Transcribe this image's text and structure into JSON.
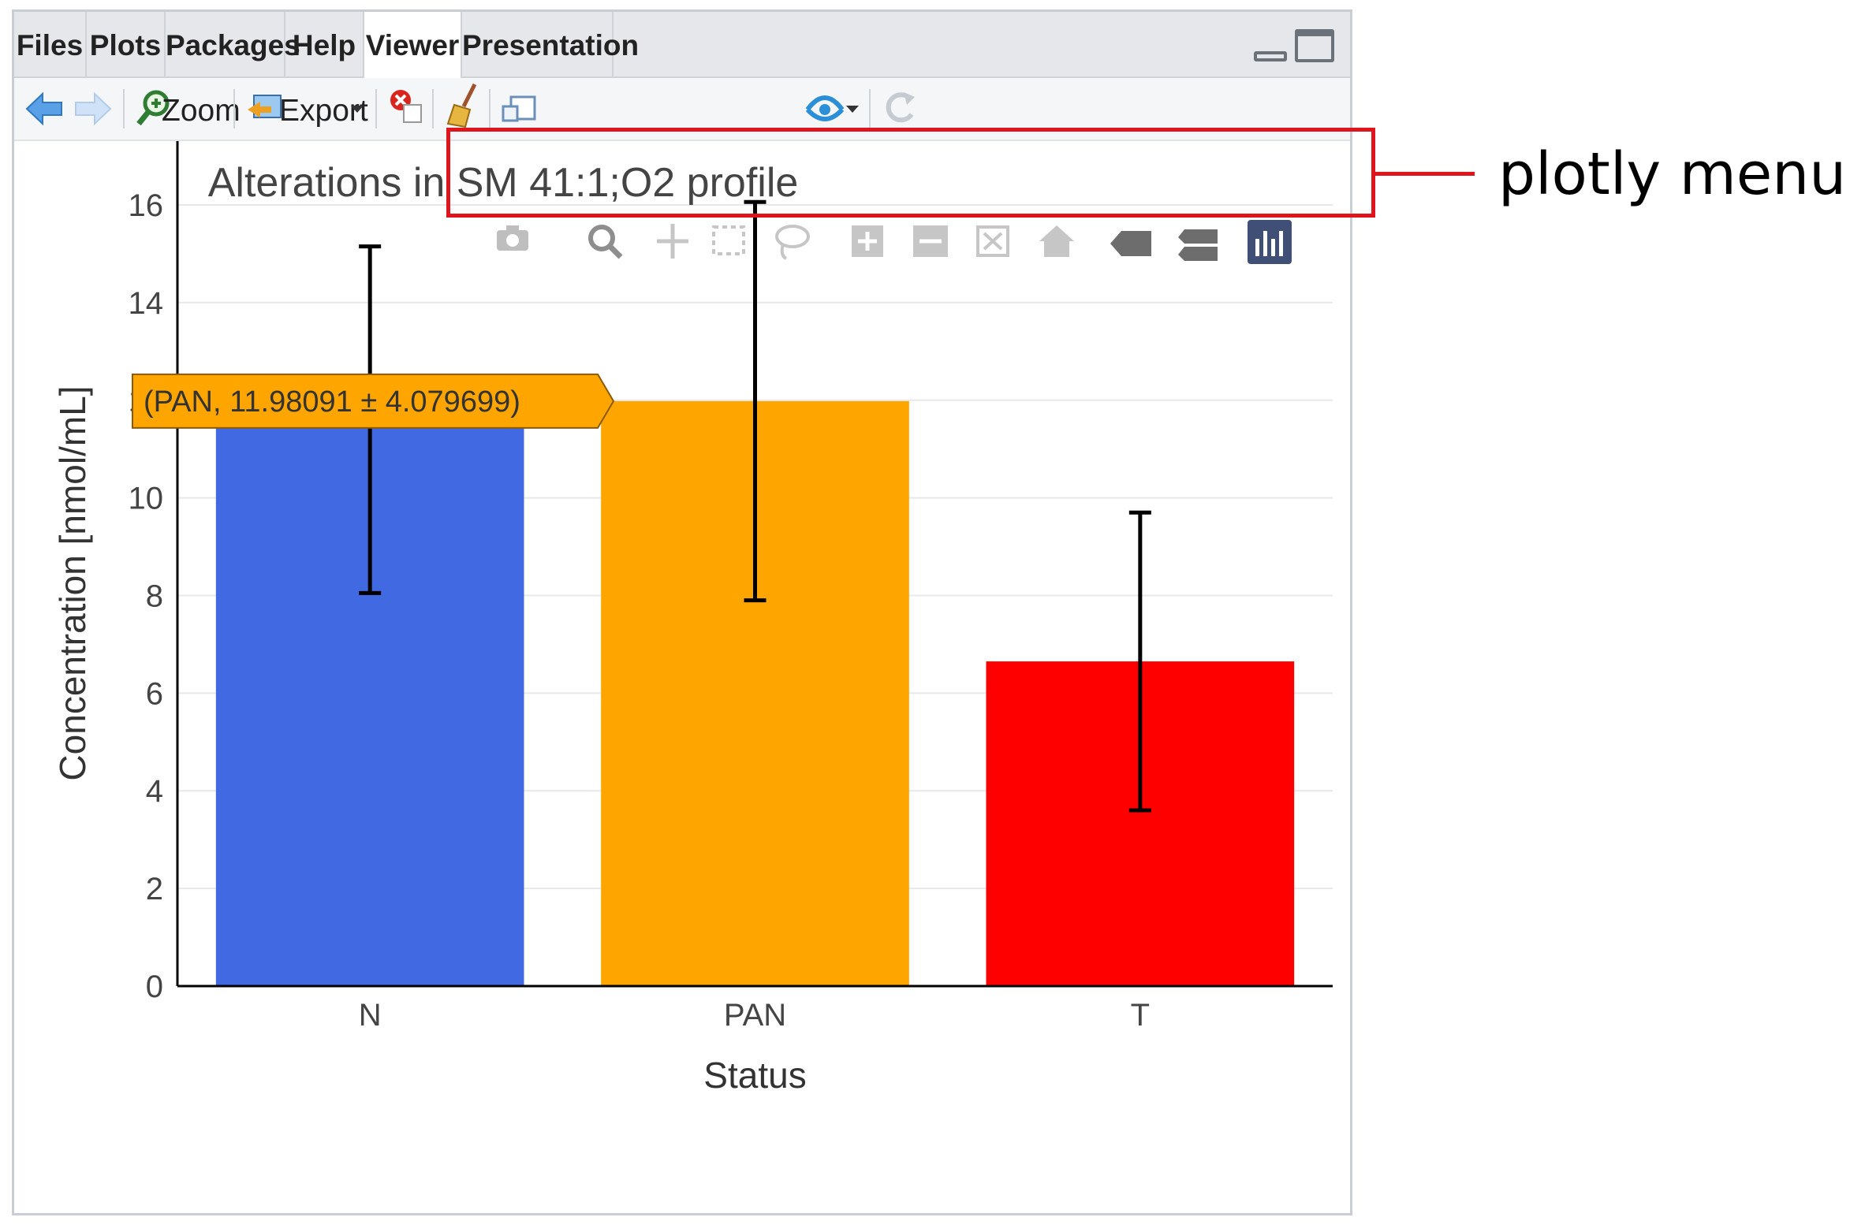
{
  "tabs": [
    {
      "label": "Files"
    },
    {
      "label": "Plots"
    },
    {
      "label": "Packages"
    },
    {
      "label": "Help"
    },
    {
      "label": "Viewer",
      "active": true
    },
    {
      "label": "Presentation"
    }
  ],
  "toolbar": {
    "zoom_label": "Zoom",
    "export_label": "Export",
    "icons": [
      "back-arrow-icon",
      "forward-arrow-icon",
      "zoom-icon",
      "export-icon",
      "clear-icon",
      "broom-icon",
      "popout-icon",
      "publish-icon",
      "refresh-icon"
    ]
  },
  "plotly_modebar": {
    "icons": [
      "camera-icon",
      "zoom-icon",
      "pan-icon",
      "box-select-icon",
      "lasso-icon",
      "zoom-in-icon",
      "zoom-out-icon",
      "autoscale-icon",
      "home-icon",
      "hover-closest-icon",
      "hover-compare-icon",
      "plotly-logo-icon"
    ]
  },
  "colors": {
    "N": "#4169e1",
    "PAN": "#ffa500",
    "T": "#ff0000",
    "annotation": "#e0141c",
    "tooltip_bg": "#ffa500"
  },
  "chart_data": {
    "type": "bar",
    "title": "Alterations in SM 41:1;O2 profile",
    "xlabel": "Status",
    "ylabel": "Concentration [nmol/mL]",
    "categories": [
      "N",
      "PAN",
      "T"
    ],
    "values": [
      11.6,
      11.98091,
      6.65
    ],
    "errors": [
      3.55,
      4.079699,
      3.05
    ],
    "ylim": [
      0,
      16.5
    ],
    "yticks": [
      0,
      2,
      4,
      6,
      8,
      10,
      12,
      14,
      16
    ],
    "grid": true,
    "hover": {
      "category": "PAN",
      "text": "(PAN, 11.98091 ± 4.079699)"
    }
  },
  "annotation": {
    "label": "plotly menu"
  }
}
